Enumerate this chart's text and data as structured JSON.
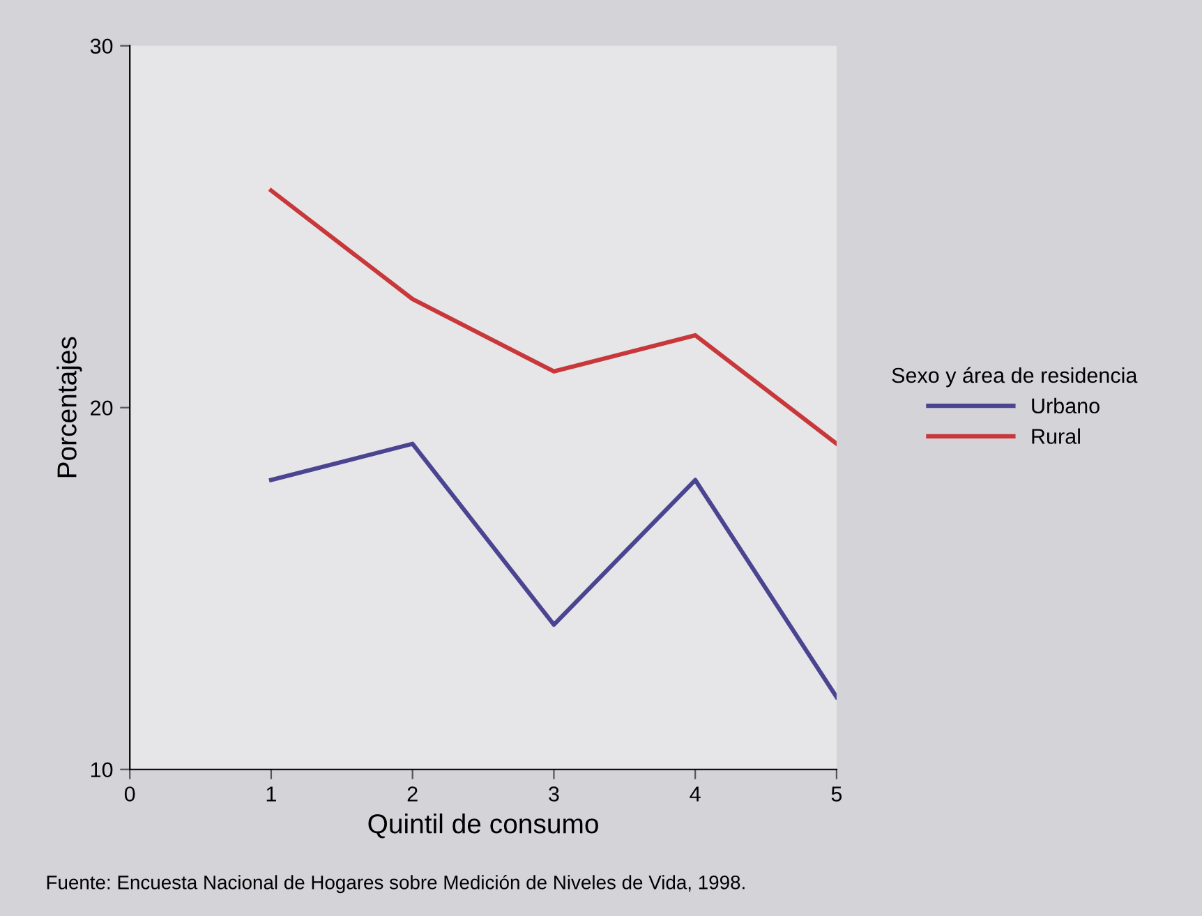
{
  "chart_data": {
    "type": "line",
    "xlabel": "Quintil de consumo",
    "ylabel": "Porcentajes",
    "legend_title": "Sexo y área de residencia",
    "legend": "right",
    "x": [
      1,
      2,
      3,
      4,
      5
    ],
    "series": [
      {
        "name": "Urbano",
        "color": "#4b4591",
        "values": [
          18,
          19,
          14,
          18,
          12
        ]
      },
      {
        "name": "Rural",
        "color": "#c8383a",
        "values": [
          26,
          23,
          21,
          22,
          19
        ]
      }
    ],
    "xlim": [
      0,
      5
    ],
    "xticks": [
      0,
      1,
      2,
      3,
      4,
      5
    ],
    "ylim": [
      10,
      30
    ],
    "yticks": [
      10,
      20,
      30
    ],
    "grid": false,
    "annotations": [
      "Fuente: Encuesta Nacional de Hogares sobre Medición de Niveles de Vida, 1998."
    ]
  }
}
